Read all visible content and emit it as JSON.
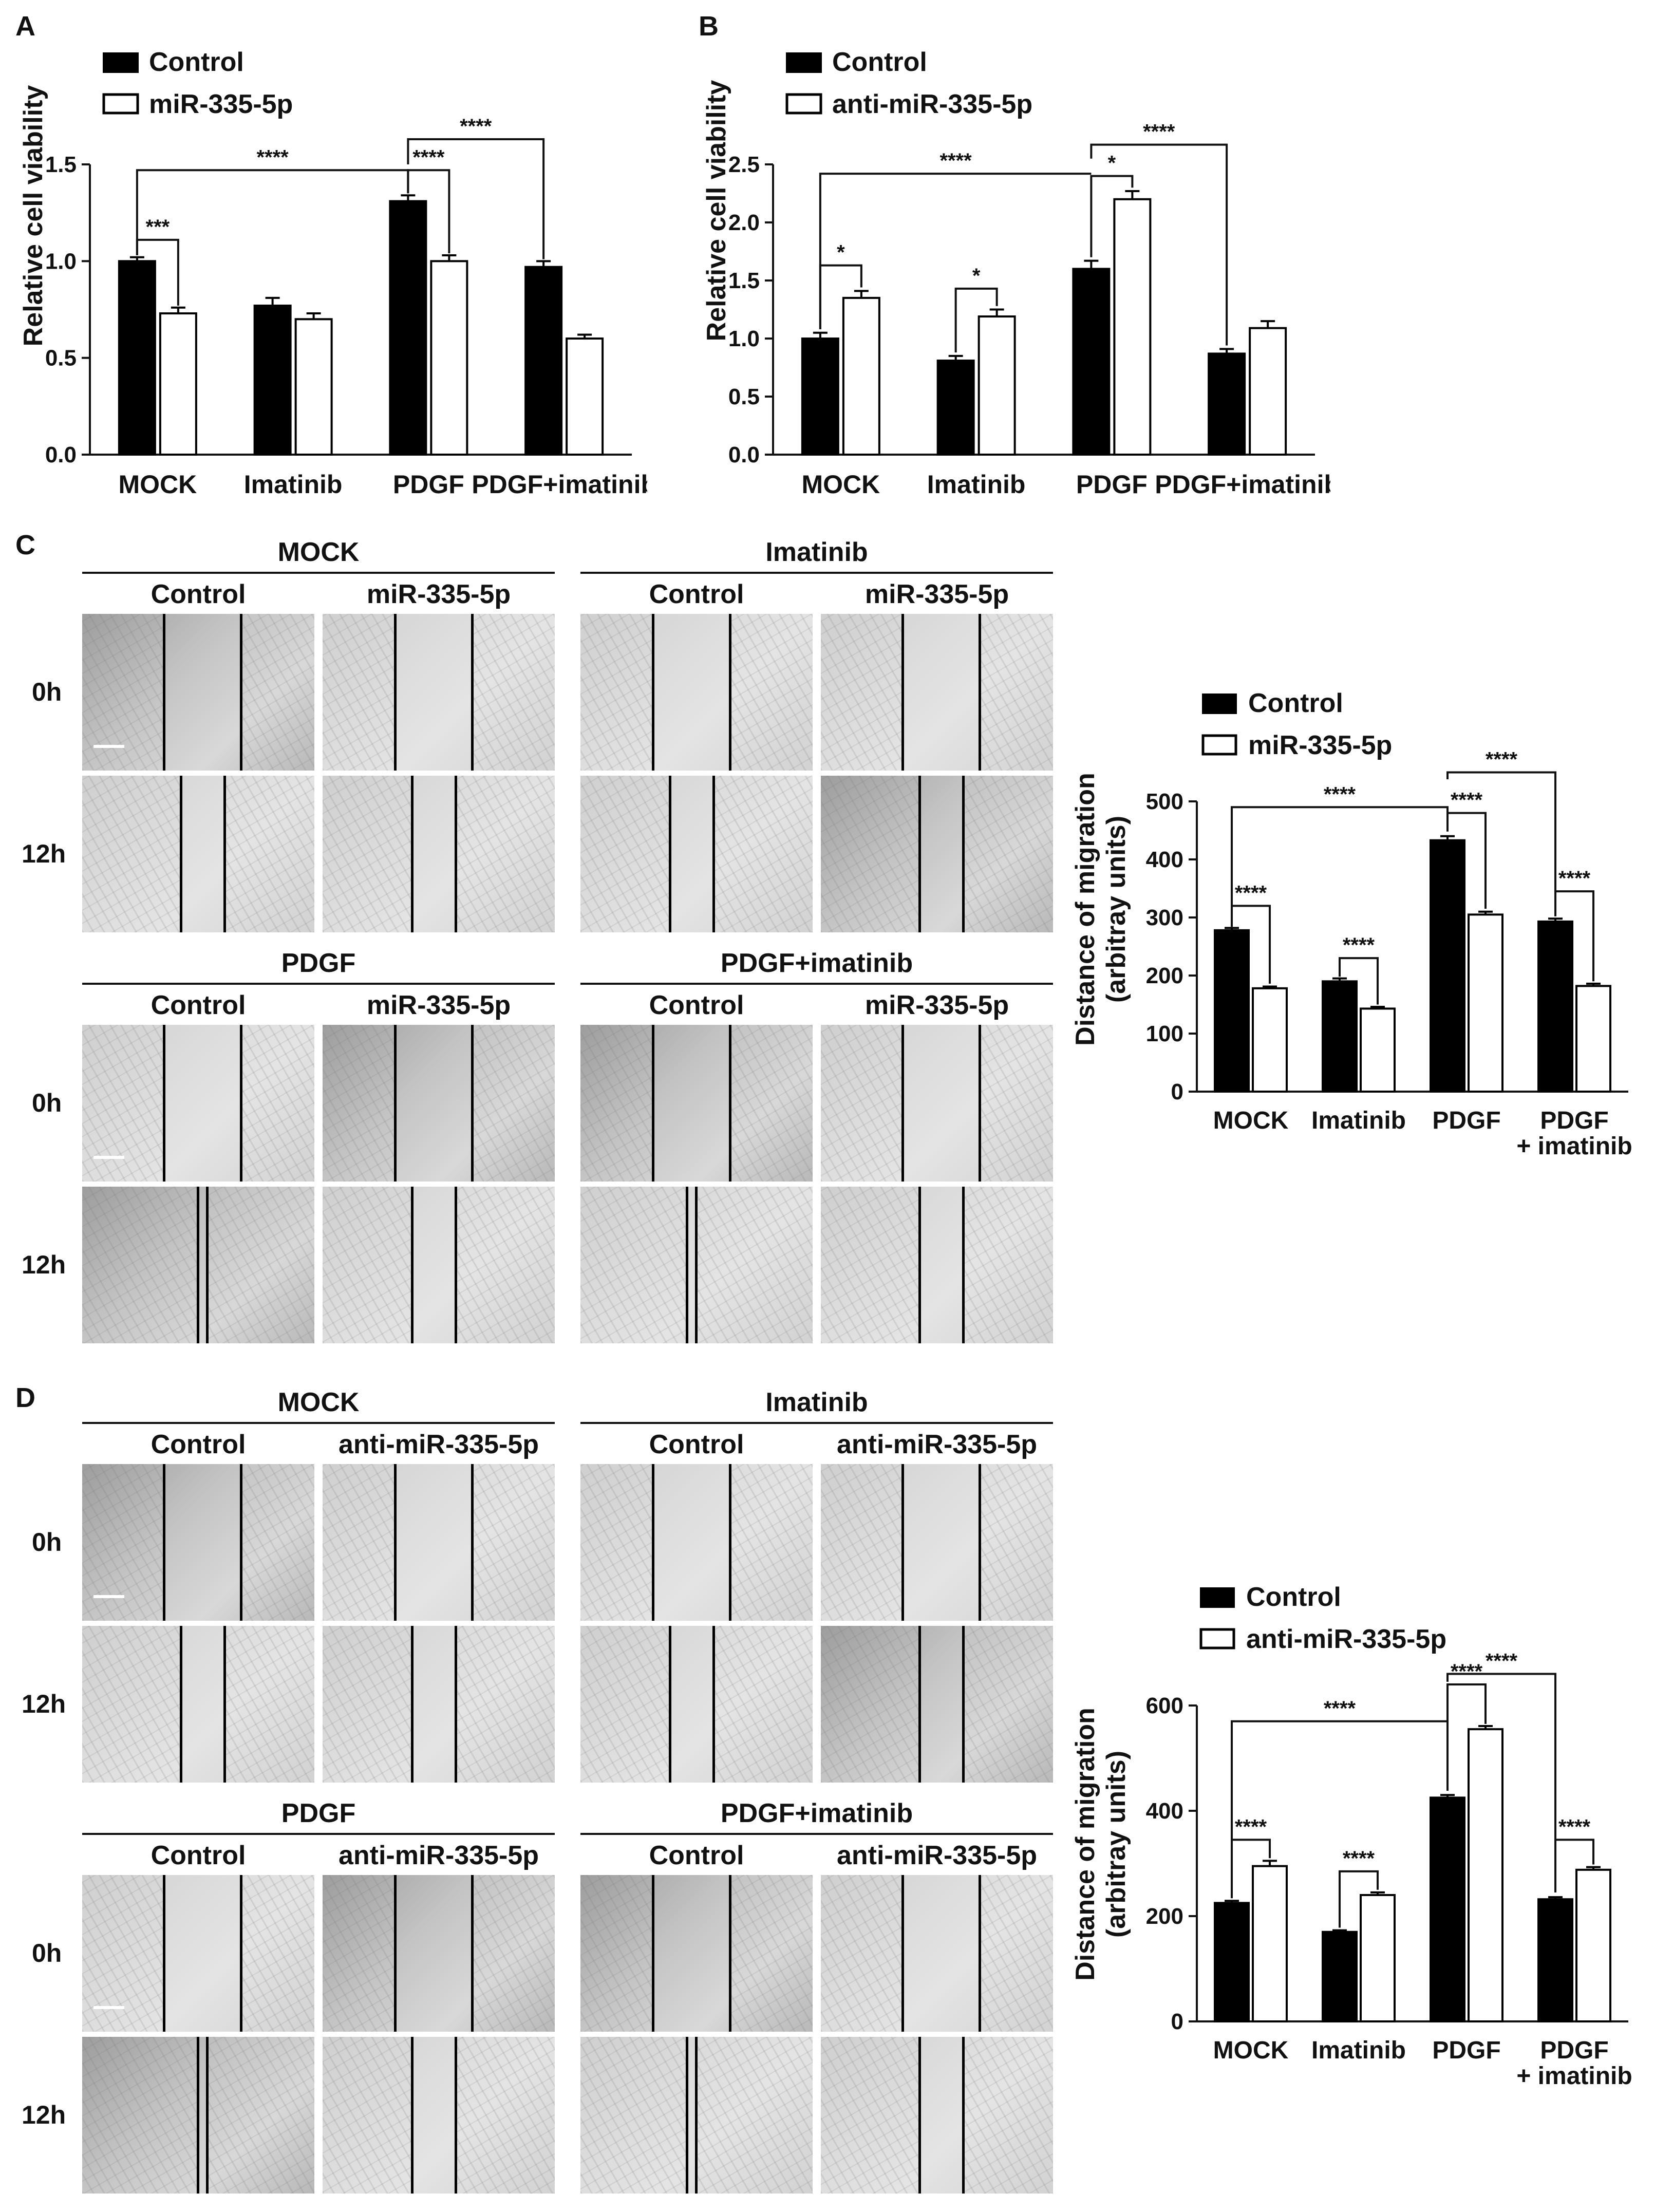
{
  "panels": {
    "A": "A",
    "B": "B",
    "C": "C",
    "D": "D"
  },
  "categories": [
    "MOCK",
    "Imatinib",
    "PDGF",
    "PDGF+imatinib"
  ],
  "categories_wrapped": [
    "MOCK",
    "Imatinib",
    "PDGF",
    "PDGF",
    "+ imatinib"
  ],
  "legend": {
    "control": "Control",
    "mir": "miR-335-5p",
    "anti": "anti-miR-335-5p"
  },
  "grid_text": {
    "groups": [
      "MOCK",
      "Imatinib",
      "PDGF",
      "PDGF+imatinib"
    ],
    "time_0": "0h",
    "time_12": "12h",
    "control": "Control",
    "mir": "miR-335-5p",
    "anti": "anti-miR-335-5p"
  },
  "colors": {
    "control_fill": "#000000",
    "treatment_fill": "#ffffff",
    "ink": "#111111"
  },
  "chart_data": [
    {
      "id": "A",
      "type": "bar",
      "title": "",
      "xlabel": "",
      "ylabel": "Relative cell viability",
      "ylim": [
        0,
        1.5
      ],
      "yticks": [
        "0.0",
        "0.5",
        "1.0",
        "1.5"
      ],
      "categories": [
        "MOCK",
        "Imatinib",
        "PDGF",
        "PDGF+imatinib"
      ],
      "series": [
        {
          "name": "Control",
          "values": [
            1.0,
            0.77,
            1.31,
            0.97
          ],
          "errors": [
            0.02,
            0.04,
            0.03,
            0.03
          ]
        },
        {
          "name": "miR-335-5p",
          "values": [
            0.73,
            0.7,
            1.0,
            0.6
          ],
          "errors": [
            0.03,
            0.03,
            0.03,
            0.02
          ]
        }
      ],
      "annotations": [
        "***",
        "****",
        "****",
        "****"
      ]
    },
    {
      "id": "B",
      "type": "bar",
      "title": "",
      "xlabel": "",
      "ylabel": "Relative cell viability",
      "ylim": [
        0,
        2.5
      ],
      "yticks": [
        "0.0",
        "0.5",
        "1.0",
        "1.5",
        "2.0",
        "2.5"
      ],
      "categories": [
        "MOCK",
        "Imatinib",
        "PDGF",
        "PDGF+imatinib"
      ],
      "series": [
        {
          "name": "Control",
          "values": [
            1.0,
            0.81,
            1.6,
            0.87
          ],
          "errors": [
            0.05,
            0.04,
            0.07,
            0.04
          ]
        },
        {
          "name": "anti-miR-335-5p",
          "values": [
            1.35,
            1.19,
            2.2,
            1.09
          ],
          "errors": [
            0.06,
            0.06,
            0.07,
            0.06
          ]
        }
      ],
      "annotations": [
        "*",
        "*",
        "****",
        "*",
        "****"
      ]
    },
    {
      "id": "C",
      "type": "bar",
      "title": "",
      "xlabel": "",
      "ylabel": "Distance of migration",
      "ylabel2": "(arbitray units)",
      "ylim": [
        0,
        500
      ],
      "yticks": [
        "0",
        "100",
        "200",
        "300",
        "400",
        "500"
      ],
      "categories": [
        "MOCK",
        "Imatinib",
        "PDGF",
        "PDGF + imatinib"
      ],
      "series": [
        {
          "name": "Control",
          "values": [
            278,
            190,
            433,
            293
          ],
          "errors": [
            4,
            5,
            7,
            5
          ]
        },
        {
          "name": "miR-335-5p",
          "values": [
            178,
            143,
            305,
            182
          ],
          "errors": [
            3,
            3,
            5,
            4
          ]
        }
      ],
      "annotations": [
        "****",
        "****",
        "****",
        "****",
        "****",
        "****"
      ]
    },
    {
      "id": "D",
      "type": "bar",
      "title": "",
      "xlabel": "",
      "ylabel": "Distance of migration",
      "ylabel2": "(arbitray units)",
      "ylim": [
        0,
        600
      ],
      "yticks": [
        "0",
        "200",
        "400",
        "600"
      ],
      "categories": [
        "MOCK",
        "Imatinib",
        "PDGF",
        "PDGF + imatinib"
      ],
      "series": [
        {
          "name": "Control",
          "values": [
            225,
            170,
            425,
            232
          ],
          "errors": [
            4,
            3,
            5,
            4
          ]
        },
        {
          "name": "anti-miR-335-5p",
          "values": [
            295,
            240,
            555,
            288
          ],
          "errors": [
            10,
            5,
            6,
            5
          ]
        }
      ],
      "annotations": [
        "****",
        "****",
        "****",
        "****",
        "****",
        "****"
      ]
    }
  ]
}
